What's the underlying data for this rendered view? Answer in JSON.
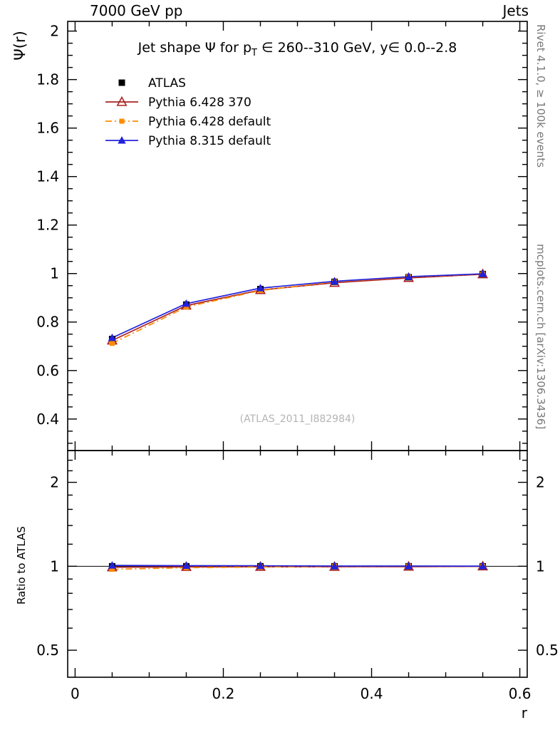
{
  "header": {
    "left": "7000 GeV pp",
    "right": "Jets"
  },
  "main_panel": {
    "ylabel": "Ψ(r)",
    "title_part1": "Jet shape Ψ for p",
    "title_sub": "T",
    "title_part2": " ∈ 260--310 GeV, y∈ 0.0--2.8",
    "watermark": "(ATLAS_2011_I882984)"
  },
  "ratio_panel": {
    "ylabel": "Ratio to ATLAS"
  },
  "right_margin": {
    "top": "Rivet 4.1.0, ≥ 100k events",
    "bottom": "mcplots.cern.ch [arXiv:1306.3436]"
  },
  "chart_data": {
    "type": "line",
    "xlabel": "r",
    "x": [
      0.05,
      0.15,
      0.25,
      0.35,
      0.45,
      0.55
    ],
    "xlim": [
      -0.01,
      0.61
    ],
    "x_ticks": [
      0,
      0.2,
      0.4,
      0.6
    ],
    "main": {
      "ylim": [
        0.27,
        2.04
      ],
      "y_ticks": [
        0.4,
        0.6,
        0.8,
        1,
        1.2,
        1.4,
        1.6,
        1.8,
        2
      ]
    },
    "ratio": {
      "scale": "log",
      "ylim": [
        0.4,
        2.6
      ],
      "y_ticks": [
        0.5,
        1,
        2
      ]
    },
    "series": [
      {
        "id": "atlas",
        "name": "ATLAS",
        "color": "#000000",
        "marker": "square",
        "line": "none",
        "values": [
          0.73,
          0.872,
          0.936,
          0.966,
          0.985,
          0.998
        ],
        "ratio": [
          1,
          1,
          1,
          1,
          1,
          1
        ]
      },
      {
        "id": "pythia-6428-370",
        "name": "Pythia 6.428 370",
        "color": "#aa2222",
        "marker": "triangle-open",
        "line": "solid",
        "values": [
          0.724,
          0.868,
          0.932,
          0.962,
          0.982,
          0.997
        ],
        "ratio": [
          0.992,
          0.995,
          0.996,
          0.996,
          0.997,
          0.999
        ]
      },
      {
        "id": "pythia-6428-default",
        "name": "Pythia 6.428 default",
        "color": "#ff8c00",
        "marker": "square-small",
        "line": "dashdot",
        "values": [
          0.712,
          0.862,
          0.93,
          0.966,
          0.986,
          0.998
        ],
        "ratio": [
          0.975,
          0.988,
          0.994,
          1.0,
          1.001,
          1.0
        ]
      },
      {
        "id": "pythia-8315-default",
        "name": "Pythia 8.315 default",
        "color": "#2222dd",
        "marker": "triangle-filled",
        "line": "solid",
        "values": [
          0.735,
          0.876,
          0.94,
          0.968,
          0.987,
          0.999
        ],
        "ratio": [
          1.007,
          1.005,
          1.004,
          1.002,
          1.002,
          1.001
        ]
      }
    ]
  }
}
